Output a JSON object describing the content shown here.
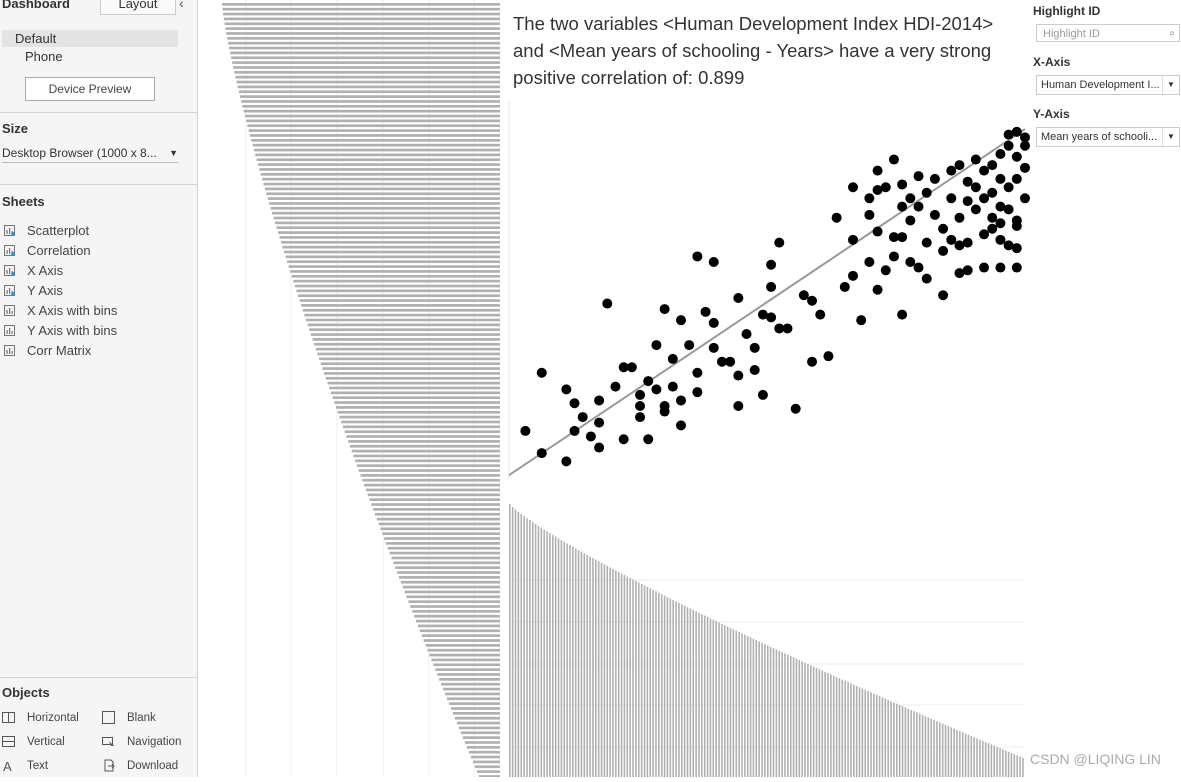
{
  "left_panel": {
    "tabs": {
      "dashboard": "Dashboard",
      "layout": "Layout"
    },
    "devices": {
      "default": "Default",
      "phone": "Phone",
      "preview_button": "Device Preview"
    },
    "size": {
      "title": "Size",
      "value": "Desktop Browser (1000 x 8..."
    },
    "sheets": {
      "title": "Sheets",
      "items": [
        {
          "label": "Scatterplot",
          "used": true
        },
        {
          "label": "Correlation",
          "used": true
        },
        {
          "label": "X Axis",
          "used": true
        },
        {
          "label": "Y Axis",
          "used": true
        },
        {
          "label": "X Axis with bins",
          "used": false
        },
        {
          "label": "Y Axis with bins",
          "used": false
        },
        {
          "label": "Corr Matrix",
          "used": false
        }
      ]
    },
    "objects": {
      "title": "Objects",
      "items": [
        {
          "label": "Horizontal",
          "icon": "horizontal-container-icon"
        },
        {
          "label": "Blank",
          "icon": "blank-icon"
        },
        {
          "label": "Vertical",
          "icon": "vertical-container-icon"
        },
        {
          "label": "Navigation",
          "icon": "navigation-icon"
        },
        {
          "label": "Text",
          "icon": "text-icon"
        },
        {
          "label": "Download",
          "icon": "download-icon"
        }
      ]
    }
  },
  "correlation_text": "The two variables <Human Development Index HDI-2014> and <Mean years of schooling - Years> have a very strong positive correlation of: 0.899",
  "right_panel": {
    "highlight": {
      "title": "Highlight ID",
      "placeholder": "Highlight ID"
    },
    "x_axis": {
      "title": "X-Axis",
      "value": "Human Development I..."
    },
    "y_axis": {
      "title": "Y-Axis",
      "value": "Mean years of schooli..."
    }
  },
  "watermark": "CSDN @LIQING LIN",
  "colors": {
    "bar": "#b0b0b0",
    "point": "#000000",
    "trend": "#999999",
    "panel": "#f5f5f5"
  },
  "chart_data": [
    {
      "type": "scatter",
      "title": "",
      "xlabel": "",
      "ylabel": "",
      "xlim": [
        0.33,
        0.96
      ],
      "ylim": [
        0.5,
        13.5
      ],
      "points": [
        [
          0.35,
          2.2
        ],
        [
          0.37,
          4.3
        ],
        [
          0.37,
          1.4
        ],
        [
          0.4,
          3.7
        ],
        [
          0.4,
          1.1
        ],
        [
          0.41,
          2.2
        ],
        [
          0.42,
          2.7
        ],
        [
          0.41,
          3.2
        ],
        [
          0.43,
          2.0
        ],
        [
          0.44,
          1.6
        ],
        [
          0.44,
          3.3
        ],
        [
          0.44,
          2.5
        ],
        [
          0.45,
          6.8
        ],
        [
          0.46,
          3.8
        ],
        [
          0.47,
          4.5
        ],
        [
          0.47,
          1.9
        ],
        [
          0.48,
          4.5
        ],
        [
          0.49,
          3.5
        ],
        [
          0.49,
          3.1
        ],
        [
          0.49,
          2.7
        ],
        [
          0.5,
          1.9
        ],
        [
          0.5,
          4.0
        ],
        [
          0.51,
          5.3
        ],
        [
          0.51,
          3.7
        ],
        [
          0.52,
          3.1
        ],
        [
          0.52,
          6.6
        ],
        [
          0.52,
          2.9
        ],
        [
          0.53,
          4.8
        ],
        [
          0.53,
          3.8
        ],
        [
          0.54,
          3.3
        ],
        [
          0.54,
          2.4
        ],
        [
          0.54,
          6.2
        ],
        [
          0.55,
          5.3
        ],
        [
          0.56,
          4.3
        ],
        [
          0.56,
          3.6
        ],
        [
          0.56,
          8.5
        ],
        [
          0.57,
          6.5
        ],
        [
          0.58,
          6.1
        ],
        [
          0.58,
          5.2
        ],
        [
          0.58,
          8.3
        ],
        [
          0.59,
          4.7
        ],
        [
          0.6,
          4.7
        ],
        [
          0.61,
          4.2
        ],
        [
          0.61,
          3.1
        ],
        [
          0.61,
          7.0
        ],
        [
          0.62,
          5.7
        ],
        [
          0.63,
          5.2
        ],
        [
          0.63,
          4.4
        ],
        [
          0.64,
          3.5
        ],
        [
          0.64,
          6.4
        ],
        [
          0.65,
          7.4
        ],
        [
          0.65,
          8.2
        ],
        [
          0.65,
          6.3
        ],
        [
          0.66,
          9.0
        ],
        [
          0.66,
          5.9
        ],
        [
          0.67,
          5.9
        ],
        [
          0.68,
          3.0
        ],
        [
          0.69,
          7.1
        ],
        [
          0.7,
          4.7
        ],
        [
          0.7,
          6.9
        ],
        [
          0.71,
          6.4
        ],
        [
          0.72,
          4.9
        ],
        [
          0.73,
          9.9
        ],
        [
          0.74,
          7.4
        ],
        [
          0.75,
          11.0
        ],
        [
          0.75,
          9.1
        ],
        [
          0.75,
          7.8
        ],
        [
          0.76,
          6.2
        ],
        [
          0.77,
          8.3
        ],
        [
          0.77,
          10.6
        ],
        [
          0.77,
          10.0
        ],
        [
          0.78,
          9.4
        ],
        [
          0.78,
          7.3
        ],
        [
          0.78,
          11.6
        ],
        [
          0.78,
          10.9
        ],
        [
          0.79,
          8.0
        ],
        [
          0.79,
          11.0
        ],
        [
          0.8,
          9.2
        ],
        [
          0.8,
          8.5
        ],
        [
          0.8,
          12.0
        ],
        [
          0.81,
          11.1
        ],
        [
          0.81,
          10.3
        ],
        [
          0.81,
          9.2
        ],
        [
          0.81,
          6.4
        ],
        [
          0.82,
          10.6
        ],
        [
          0.82,
          9.8
        ],
        [
          0.82,
          8.3
        ],
        [
          0.83,
          11.4
        ],
        [
          0.83,
          10.3
        ],
        [
          0.83,
          8.1
        ],
        [
          0.84,
          9.0
        ],
        [
          0.84,
          7.7
        ],
        [
          0.84,
          10.8
        ],
        [
          0.85,
          11.3
        ],
        [
          0.85,
          10.0
        ],
        [
          0.86,
          9.5
        ],
        [
          0.86,
          8.7
        ],
        [
          0.86,
          7.1
        ],
        [
          0.87,
          11.6
        ],
        [
          0.87,
          10.6
        ],
        [
          0.87,
          9.1
        ],
        [
          0.88,
          9.9
        ],
        [
          0.88,
          8.9
        ],
        [
          0.88,
          7.9
        ],
        [
          0.88,
          11.8
        ],
        [
          0.89,
          11.2
        ],
        [
          0.89,
          10.5
        ],
        [
          0.89,
          9.0
        ],
        [
          0.89,
          8.0
        ],
        [
          0.9,
          11.0
        ],
        [
          0.9,
          10.2
        ],
        [
          0.9,
          12.0
        ],
        [
          0.91,
          11.6
        ],
        [
          0.91,
          10.6
        ],
        [
          0.91,
          9.3
        ],
        [
          0.91,
          8.1
        ],
        [
          0.92,
          11.8
        ],
        [
          0.92,
          10.8
        ],
        [
          0.92,
          9.5
        ],
        [
          0.93,
          12.2
        ],
        [
          0.93,
          11.3
        ],
        [
          0.93,
          10.3
        ],
        [
          0.93,
          9.1
        ],
        [
          0.93,
          8.1
        ],
        [
          0.94,
          12.5
        ],
        [
          0.94,
          11.0
        ],
        [
          0.94,
          10.2
        ],
        [
          0.94,
          12.9
        ],
        [
          0.95,
          12.1
        ],
        [
          0.95,
          11.3
        ],
        [
          0.95,
          9.8
        ],
        [
          0.95,
          8.8
        ],
        [
          0.95,
          13.0
        ],
        [
          0.96,
          12.5
        ],
        [
          0.96,
          11.7
        ],
        [
          0.96,
          10.6
        ],
        [
          0.95,
          9.6
        ],
        [
          0.96,
          12.8
        ],
        [
          0.95,
          8.1
        ],
        [
          0.94,
          8.9
        ],
        [
          0.93,
          9.7
        ],
        [
          0.92,
          9.9
        ]
      ],
      "trend_line": {
        "x": [
          0.33,
          0.96
        ],
        "y": [
          0.6,
          13.1
        ]
      }
    },
    {
      "type": "bar",
      "orientation": "horizontal",
      "description": "Sorted bar distribution of X-axis variable (HDI)",
      "bar_count": 160,
      "values_range": [
        0.35,
        0.96
      ],
      "gridlines": true
    },
    {
      "type": "bar",
      "orientation": "vertical",
      "description": "Sorted bar distribution of Y-axis variable (Mean years of schooling)",
      "bar_count": 180,
      "values_range": [
        1.2,
        13.1
      ],
      "gridlines": true
    }
  ]
}
